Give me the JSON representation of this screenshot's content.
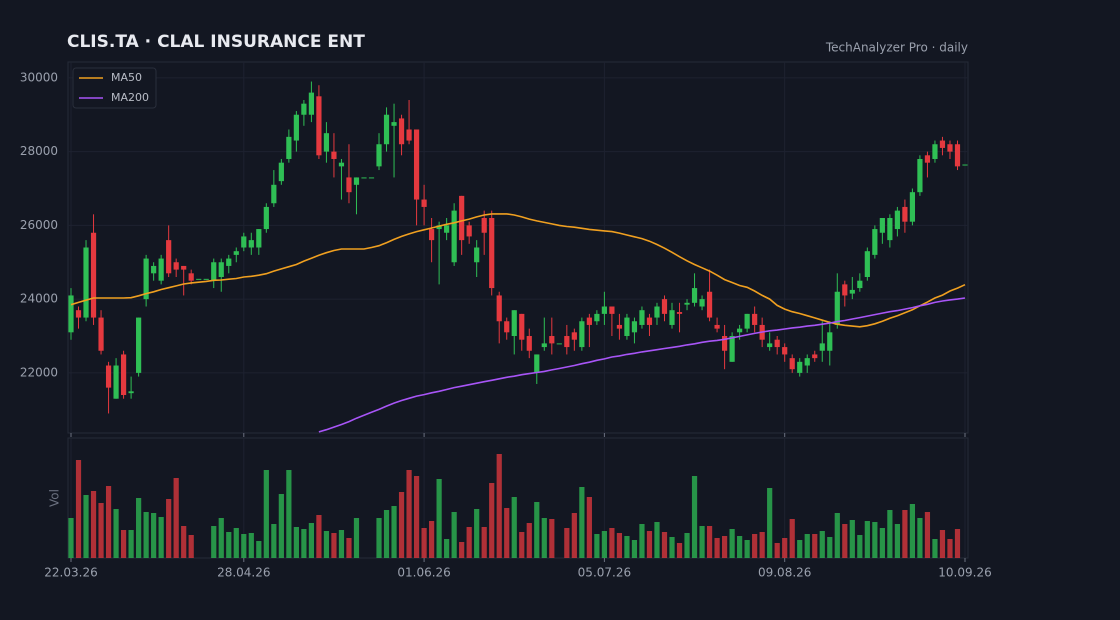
{
  "chart_data": {
    "type": "candlestick",
    "title": "CLIS.TA · CLAL INSURANCE ENT",
    "subtitle": "TechAnalyzer Pro · daily",
    "volume_label": "Vol",
    "categories": [
      "22.03.26",
      null,
      null,
      null,
      null,
      null,
      null,
      null,
      null,
      null,
      null,
      null,
      null,
      null,
      null,
      null,
      null,
      null,
      null,
      null,
      null,
      null,
      null,
      "28.04.26",
      null,
      null,
      null,
      null,
      null,
      null,
      null,
      null,
      null,
      null,
      null,
      null,
      null,
      null,
      null,
      null,
      null,
      null,
      null,
      null,
      null,
      null,
      null,
      "01.06.26",
      null,
      null,
      null,
      null,
      null,
      null,
      null,
      null,
      null,
      null,
      null,
      null,
      null,
      null,
      null,
      null,
      null,
      null,
      null,
      null,
      null,
      null,
      null,
      "05.07.26",
      null,
      null,
      null,
      null,
      null,
      null,
      null,
      null,
      null,
      null,
      null,
      null,
      null,
      null,
      null,
      null,
      null,
      null,
      null,
      null,
      null,
      null,
      null,
      "09.08.26",
      null,
      null,
      null,
      null,
      null,
      null,
      null,
      null,
      null,
      null,
      null,
      null,
      null,
      null,
      null,
      null,
      null,
      null,
      null,
      null,
      null,
      null,
      null,
      "10.09.26"
    ],
    "open": [
      23100,
      23700,
      23500,
      25800,
      23500,
      22200,
      21300,
      22500,
      21450,
      22000,
      24000,
      24700,
      24500,
      25600,
      25000,
      24900,
      24700,
      24550,
      24550,
      24500,
      24600,
      24900,
      25200,
      25400,
      25400,
      25400,
      25900,
      26600,
      27200,
      27800,
      28300,
      29000,
      29000,
      29500,
      28000,
      28000,
      27600,
      27300,
      27100,
      27300,
      27300,
      27600,
      28200,
      28700,
      28900,
      28600,
      28600,
      26700,
      25900,
      25900,
      25800,
      25000,
      26800,
      26000,
      25000,
      26200,
      26200,
      24100,
      23400,
      23000,
      23600,
      23000,
      22000,
      22700,
      23000,
      22800,
      23000,
      23100,
      22700,
      23500,
      23400,
      23600,
      23800,
      23300,
      23000,
      23100,
      23300,
      23500,
      23500,
      24000,
      23300,
      23650,
      23850,
      23900,
      23800,
      24200,
      23300,
      23000,
      22300,
      23100,
      23200,
      23600,
      23300,
      22700,
      22900,
      22700,
      22400,
      22000,
      22200,
      22500,
      22600,
      22600,
      23300,
      24400,
      24150,
      24300,
      24600,
      25200,
      25800,
      25600,
      25900,
      26500,
      26100,
      26900,
      27900,
      27800,
      28300,
      28200,
      28200,
      27650
    ],
    "high": [
      24300,
      23800,
      25600,
      26300,
      23700,
      22300,
      22400,
      22600,
      21900,
      23500,
      25200,
      25000,
      25200,
      26000,
      25100,
      24900,
      24800,
      24550,
      24550,
      25100,
      25100,
      25200,
      25400,
      25800,
      25800,
      25900,
      26600,
      27500,
      27800,
      28600,
      29100,
      29400,
      29900,
      29800,
      28800,
      28500,
      27800,
      28200,
      27300,
      27300,
      27300,
      28500,
      29200,
      29300,
      29000,
      29400,
      28600,
      27100,
      26200,
      26100,
      26200,
      26600,
      26800,
      26100,
      25600,
      26400,
      26400,
      24200,
      23500,
      23700,
      23600,
      23200,
      22500,
      23500,
      23500,
      22800,
      23300,
      23200,
      23500,
      23600,
      23700,
      24200,
      23800,
      23600,
      23600,
      23500,
      23800,
      23600,
      23900,
      24100,
      23900,
      23900,
      24000,
      24700,
      24100,
      24800,
      23500,
      23300,
      23100,
      23300,
      23600,
      23800,
      23500,
      23100,
      23000,
      22800,
      22500,
      22400,
      22500,
      22600,
      23400,
      23400,
      24700,
      24500,
      24600,
      24700,
      25400,
      26000,
      26200,
      26300,
      26500,
      26700,
      27000,
      27900,
      28000,
      28300,
      28400,
      28300,
      28300,
      27650
    ],
    "low": [
      22900,
      23200,
      23400,
      23300,
      22500,
      20900,
      21300,
      21300,
      21300,
      21900,
      23800,
      24500,
      24400,
      24600,
      24600,
      24100,
      24400,
      24550,
      24550,
      24300,
      24200,
      24700,
      25000,
      25300,
      25200,
      25200,
      25800,
      26500,
      27100,
      27700,
      28000,
      28700,
      28800,
      27800,
      27700,
      27300,
      26700,
      26600,
      26300,
      27300,
      27300,
      27500,
      28000,
      27300,
      27900,
      28200,
      26000,
      26000,
      25000,
      24400,
      25600,
      24900,
      25200,
      25500,
      24600,
      25200,
      24100,
      22800,
      22900,
      22500,
      22600,
      22400,
      21700,
      22600,
      22500,
      22800,
      22500,
      22600,
      22600,
      22700,
      23300,
      23300,
      23000,
      22900,
      22900,
      22800,
      23200,
      23000,
      23300,
      23400,
      23200,
      23100,
      23700,
      23800,
      23700,
      23400,
      23100,
      22100,
      22300,
      22900,
      23100,
      23100,
      22700,
      22600,
      22500,
      22300,
      22000,
      21900,
      22000,
      22300,
      22300,
      22200,
      23200,
      23800,
      24000,
      24200,
      24500,
      25100,
      25500,
      25400,
      25700,
      25800,
      26000,
      26800,
      27300,
      27700,
      27900,
      27800,
      27500,
      27650
    ],
    "close": [
      24100,
      23500,
      25400,
      23500,
      22600,
      21600,
      22200,
      21400,
      21500,
      23500,
      25100,
      24900,
      25100,
      24700,
      24800,
      24800,
      24500,
      24550,
      24550,
      25000,
      25000,
      25100,
      25300,
      25700,
      25600,
      25900,
      26500,
      27100,
      27700,
      28400,
      29000,
      29300,
      29600,
      27900,
      28500,
      27800,
      27700,
      26900,
      27300,
      27300,
      27300,
      28200,
      29000,
      28800,
      28200,
      28300,
      26700,
      26500,
      25600,
      26000,
      26000,
      26400,
      25600,
      25700,
      25400,
      25800,
      24300,
      23400,
      23100,
      23700,
      22900,
      22600,
      22500,
      22800,
      22800,
      22800,
      22700,
      22900,
      23400,
      23300,
      23600,
      23800,
      23600,
      23200,
      23500,
      23400,
      23700,
      23300,
      23800,
      23600,
      23700,
      23600,
      23900,
      24300,
      24000,
      23500,
      23200,
      22600,
      23000,
      23200,
      23600,
      23300,
      22900,
      22800,
      22700,
      22500,
      22100,
      22300,
      22400,
      22400,
      22800,
      23100,
      24200,
      24100,
      24250,
      24500,
      25300,
      25900,
      26200,
      26200,
      26400,
      26100,
      26900,
      27800,
      27700,
      28200,
      28100,
      28000,
      27600,
      27650
    ],
    "volume": [
      40,
      98,
      63,
      67,
      55,
      72,
      49,
      28,
      28,
      60,
      46,
      45,
      41,
      59,
      80,
      32,
      23,
      0,
      0,
      32,
      40,
      26,
      30,
      24,
      25,
      17,
      88,
      34,
      64,
      88,
      31,
      29,
      35,
      43,
      27,
      25,
      28,
      20,
      40,
      0,
      0,
      40,
      48,
      52,
      66,
      88,
      82,
      30,
      37,
      79,
      19,
      46,
      16,
      31,
      49,
      31,
      75,
      104,
      50,
      61,
      26,
      35,
      56,
      40,
      39,
      0,
      30,
      45,
      71,
      61,
      24,
      27,
      30,
      25,
      22,
      18,
      34,
      27,
      36,
      26,
      21,
      15,
      25,
      82,
      32,
      32,
      20,
      22,
      29,
      22,
      18,
      24,
      26,
      70,
      15,
      20,
      39,
      18,
      24,
      24,
      27,
      21,
      45,
      34,
      38,
      23,
      37,
      36,
      30,
      48,
      34,
      48,
      54,
      40,
      46,
      19,
      28,
      19,
      29,
      0
    ],
    "series": [
      {
        "name": "MA50",
        "color": "#f0a020",
        "values": [
          23850,
          23910,
          23970,
          24030,
          24030,
          24030,
          24030,
          24030,
          24040,
          24090,
          24150,
          24200,
          24260,
          24310,
          24360,
          24410,
          24440,
          24460,
          24480,
          24510,
          24520,
          24540,
          24560,
          24600,
          24620,
          24650,
          24690,
          24760,
          24820,
          24880,
          24940,
          25030,
          25110,
          25190,
          25260,
          25320,
          25360,
          25360,
          25360,
          25360,
          25400,
          25450,
          25530,
          25620,
          25700,
          25770,
          25830,
          25880,
          25930,
          25980,
          26030,
          26070,
          26120,
          26170,
          26230,
          26280,
          26310,
          26310,
          26310,
          26280,
          26230,
          26170,
          26120,
          26080,
          26040,
          26000,
          25970,
          25950,
          25920,
          25890,
          25870,
          25850,
          25830,
          25790,
          25740,
          25690,
          25640,
          25570,
          25480,
          25380,
          25270,
          25150,
          25040,
          24940,
          24850,
          24760,
          24650,
          24530,
          24450,
          24370,
          24320,
          24220,
          24100,
          24000,
          23830,
          23730,
          23660,
          23610,
          23550,
          23490,
          23430,
          23370,
          23320,
          23290,
          23270,
          23250,
          23280,
          23330,
          23400,
          23480,
          23550,
          23630,
          23710,
          23820,
          23920,
          24030,
          24110,
          24220,
          24300,
          24390
        ]
      },
      {
        "name": "MA200",
        "color": "#a855f7",
        "values": [
          null,
          null,
          null,
          null,
          null,
          null,
          null,
          null,
          null,
          null,
          null,
          null,
          null,
          null,
          null,
          null,
          null,
          null,
          null,
          null,
          null,
          null,
          null,
          null,
          null,
          null,
          null,
          null,
          null,
          null,
          null,
          null,
          null,
          20400,
          20460,
          20530,
          20600,
          20680,
          20770,
          20850,
          20930,
          21010,
          21100,
          21180,
          21250,
          21310,
          21370,
          21410,
          21460,
          21500,
          21550,
          21600,
          21640,
          21680,
          21720,
          21760,
          21800,
          21840,
          21880,
          21910,
          21950,
          21980,
          22010,
          22040,
          22080,
          22120,
          22160,
          22200,
          22250,
          22290,
          22340,
          22380,
          22430,
          22460,
          22500,
          22530,
          22570,
          22600,
          22630,
          22660,
          22690,
          22720,
          22760,
          22790,
          22830,
          22860,
          22880,
          22910,
          22950,
          22990,
          23030,
          23070,
          23110,
          23140,
          23160,
          23190,
          23220,
          23240,
          23270,
          23290,
          23320,
          23350,
          23390,
          23420,
          23460,
          23500,
          23540,
          23580,
          23620,
          23660,
          23690,
          23730,
          23770,
          23820,
          23860,
          23910,
          23950,
          23980,
          24000,
          24030
        ]
      }
    ],
    "up_color": "#2fbf55",
    "down_color": "#e5393f",
    "ylim": [
      20370,
      30430
    ],
    "yticks": [
      22000,
      24000,
      26000,
      28000,
      30000
    ],
    "volume_ylim": [
      0,
      120
    ],
    "grid": true,
    "legend": "upper left"
  }
}
